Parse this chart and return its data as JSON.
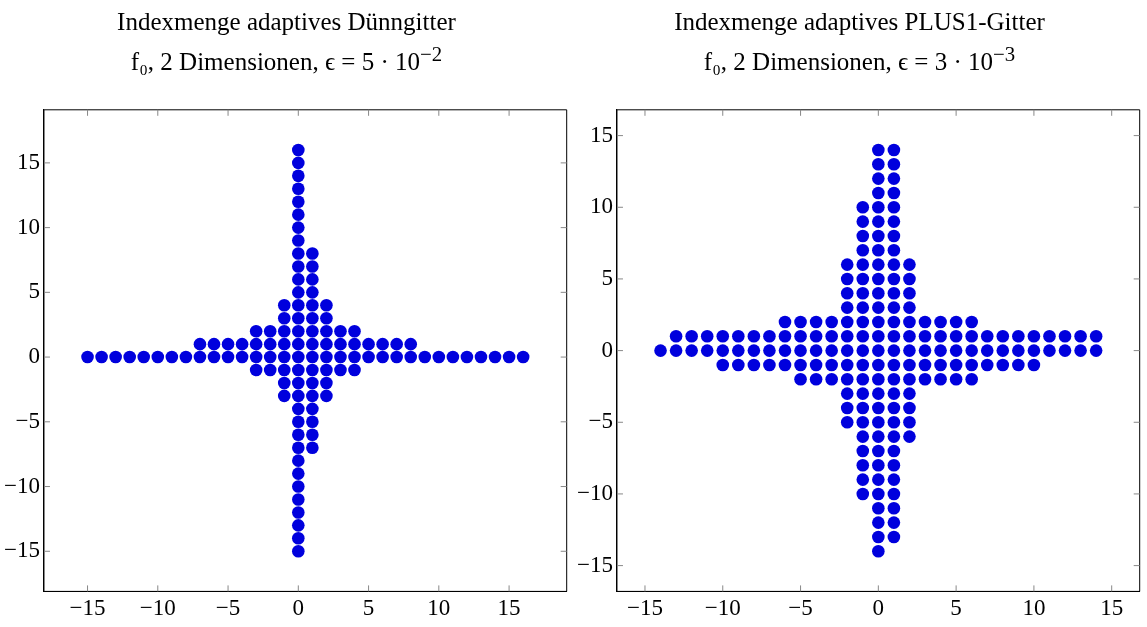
{
  "chart_data": [
    {
      "type": "scatter",
      "title": "Indexmenge adaptives Dünngitter",
      "subtitle": "f₀, 2 Dimensionen, ϵ = 5 · 10$^{−2}$",
      "color": "#0000dd",
      "marker": "circle",
      "x": [
        0,
        0,
        0,
        0,
        0,
        0,
        0,
        0,
        0,
        1,
        0,
        1,
        0,
        1,
        0,
        1,
        -1,
        0,
        1,
        2,
        -1,
        0,
        1,
        2,
        -3,
        -2,
        -1,
        0,
        1,
        2,
        3,
        4,
        -7,
        -6,
        -5,
        -4,
        -3,
        -2,
        -1,
        0,
        1,
        2,
        3,
        4,
        5,
        6,
        7,
        8,
        -15,
        -14,
        -13,
        -12,
        -11,
        -10,
        -9,
        -8,
        -7,
        -6,
        -5,
        -4,
        -3,
        -2,
        -1,
        0,
        1,
        2,
        3,
        4,
        5,
        6,
        7,
        8,
        9,
        10,
        11,
        12,
        13,
        14,
        15,
        16,
        -3,
        -2,
        -1,
        0,
        1,
        2,
        3,
        4,
        -1,
        0,
        1,
        2,
        -1,
        0,
        1,
        2,
        0,
        1,
        0,
        1,
        0,
        1,
        0,
        1,
        0,
        0,
        0,
        0,
        0,
        0,
        0,
        0
      ],
      "values": [
        16,
        15,
        14,
        13,
        12,
        11,
        10,
        9,
        8,
        8,
        7,
        7,
        6,
        6,
        5,
        5,
        4,
        4,
        4,
        4,
        3,
        3,
        3,
        3,
        2,
        2,
        2,
        2,
        2,
        2,
        2,
        2,
        1,
        1,
        1,
        1,
        1,
        1,
        1,
        1,
        1,
        1,
        1,
        1,
        1,
        1,
        1,
        1,
        0,
        0,
        0,
        0,
        0,
        0,
        0,
        0,
        0,
        0,
        0,
        0,
        0,
        0,
        0,
        0,
        0,
        0,
        0,
        0,
        0,
        0,
        0,
        0,
        0,
        0,
        0,
        0,
        0,
        0,
        0,
        0,
        -1,
        -1,
        -1,
        -1,
        -1,
        -1,
        -1,
        -1,
        -2,
        -2,
        -2,
        -2,
        -3,
        -3,
        -3,
        -3,
        -4,
        -4,
        -5,
        -5,
        -6,
        -6,
        -7,
        -7,
        -8,
        -9,
        -10,
        -11,
        -12,
        -13,
        -14,
        -15
      ],
      "xlim": [
        -18.1,
        19.1
      ],
      "ylim": [
        -18.1,
        19.1
      ],
      "xticks": [
        -15,
        -10,
        -5,
        0,
        5,
        10,
        15
      ],
      "yticks": [
        -15,
        -10,
        -5,
        0,
        5,
        10,
        15
      ]
    },
    {
      "type": "scatter",
      "title": "Indexmenge adaptives PLUS1-Gitter",
      "subtitle": "f₀, 2 Dimensionen, ϵ = 3 · 10$^{−3}$",
      "color": "#0000dd",
      "marker": "circle",
      "x": [
        0,
        1,
        0,
        1,
        0,
        1,
        0,
        1,
        -1,
        0,
        1,
        -1,
        0,
        1,
        -1,
        0,
        1,
        -1,
        0,
        1,
        -2,
        -1,
        0,
        1,
        2,
        -2,
        -1,
        0,
        1,
        2,
        -2,
        -1,
        0,
        1,
        2,
        -2,
        -1,
        0,
        1,
        2,
        -6,
        -5,
        -4,
        -3,
        -2,
        -1,
        0,
        1,
        2,
        3,
        4,
        5,
        6,
        -13,
        -12,
        -11,
        -10,
        -9,
        -8,
        -7,
        -6,
        -5,
        -4,
        -3,
        -2,
        -1,
        0,
        1,
        2,
        3,
        4,
        5,
        6,
        7,
        8,
        9,
        10,
        11,
        12,
        13,
        14,
        -14,
        -13,
        -12,
        -11,
        -10,
        -9,
        -8,
        -7,
        -6,
        -5,
        -4,
        -3,
        -2,
        -1,
        0,
        1,
        2,
        3,
        4,
        5,
        6,
        7,
        8,
        9,
        10,
        11,
        12,
        13,
        14,
        -10,
        -9,
        -8,
        -7,
        -6,
        -5,
        -4,
        -3,
        -2,
        -1,
        0,
        1,
        2,
        3,
        4,
        5,
        6,
        7,
        8,
        9,
        10,
        -5,
        -4,
        -3,
        -2,
        -1,
        0,
        1,
        2,
        3,
        4,
        5,
        6,
        -2,
        -1,
        0,
        1,
        2,
        -2,
        -1,
        0,
        1,
        2,
        -2,
        -1,
        0,
        1,
        2,
        -1,
        0,
        1,
        2,
        -1,
        0,
        1,
        -1,
        0,
        1,
        -1,
        0,
        1,
        -1,
        0,
        1,
        0,
        1,
        0,
        1,
        0,
        1,
        0
      ],
      "values": [
        14,
        14,
        13,
        13,
        12,
        12,
        11,
        11,
        10,
        10,
        10,
        9,
        9,
        9,
        8,
        8,
        8,
        7,
        7,
        7,
        6,
        6,
        6,
        6,
        6,
        5,
        5,
        5,
        5,
        5,
        4,
        4,
        4,
        4,
        4,
        3,
        3,
        3,
        3,
        3,
        2,
        2,
        2,
        2,
        2,
        2,
        2,
        2,
        2,
        2,
        2,
        2,
        2,
        1,
        1,
        1,
        1,
        1,
        1,
        1,
        1,
        1,
        1,
        1,
        1,
        1,
        1,
        1,
        1,
        1,
        1,
        1,
        1,
        1,
        1,
        1,
        1,
        1,
        1,
        1,
        1,
        0,
        0,
        0,
        0,
        0,
        0,
        0,
        0,
        0,
        0,
        0,
        0,
        0,
        0,
        0,
        0,
        0,
        0,
        0,
        0,
        0,
        0,
        0,
        0,
        0,
        0,
        0,
        0,
        0,
        -1,
        -1,
        -1,
        -1,
        -1,
        -1,
        -1,
        -1,
        -1,
        -1,
        -1,
        -1,
        -1,
        -1,
        -1,
        -1,
        -1,
        -1,
        -1,
        -1,
        -1,
        -2,
        -2,
        -2,
        -2,
        -2,
        -2,
        -2,
        -2,
        -2,
        -2,
        -2,
        -2,
        -3,
        -3,
        -3,
        -3,
        -3,
        -4,
        -4,
        -4,
        -4,
        -4,
        -5,
        -5,
        -5,
        -5,
        -5,
        -6,
        -6,
        -6,
        -6,
        -7,
        -7,
        -7,
        -8,
        -8,
        -8,
        -9,
        -9,
        -9,
        -10,
        -10,
        -10,
        -11,
        -11,
        -12,
        -12,
        -13,
        -13,
        -14
      ],
      "xlim": [
        -16.8,
        16.8
      ],
      "ylim": [
        -16.8,
        16.8
      ],
      "xticks": [
        -15,
        -10,
        -5,
        0,
        5,
        10,
        15
      ],
      "yticks": [
        -15,
        -10,
        -5,
        0,
        5,
        10,
        15
      ]
    }
  ]
}
